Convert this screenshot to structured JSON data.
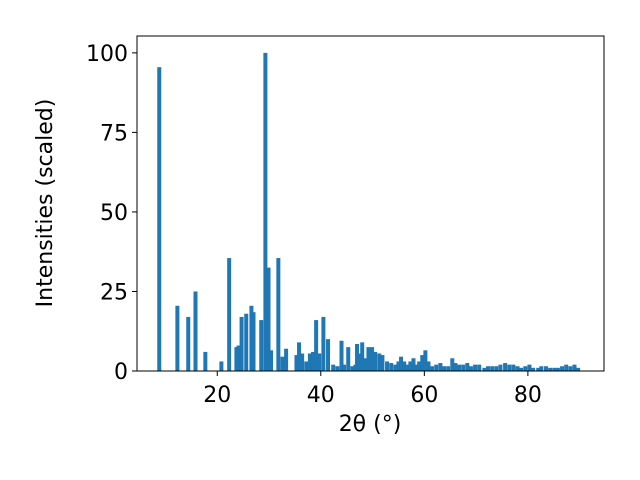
{
  "chart_data": {
    "type": "bar",
    "x_label": "2θ (°)",
    "y_label": "Intensities (scaled)",
    "color": "#1f77b4",
    "x": [
      8.8,
      12.3,
      14.4,
      15.8,
      17.7,
      20.8,
      22.3,
      23.7,
      24.1,
      24.7,
      25.6,
      26.6,
      27.0,
      28.5,
      29.3,
      29.9,
      30.4,
      31.8,
      32.6,
      33.3,
      35.3,
      35.8,
      36.4,
      37.2,
      37.9,
      38.5,
      39.1,
      39.7,
      40.5,
      41.4,
      42.4,
      43.2,
      44.0,
      44.5,
      45.3,
      46.1,
      46.7,
      47.0,
      47.4,
      48.0,
      48.6,
      49.2,
      49.9,
      50.5,
      51.3,
      51.9,
      52.8,
      53.6,
      54.4,
      55.0,
      55.5,
      56.1,
      56.7,
      57.3,
      57.9,
      58.4,
      59.0,
      59.6,
      60.2,
      60.8,
      61.5,
      62.3,
      63.1,
      63.8,
      64.6,
      65.4,
      66.0,
      66.7,
      67.5,
      68.3,
      69.0,
      69.8,
      70.6,
      71.6,
      72.3,
      73.1,
      73.9,
      74.7,
      75.6,
      76.4,
      77.2,
      78.0,
      78.7,
      79.5,
      80.3,
      81.0,
      82.0,
      82.6,
      83.5,
      84.3,
      85.1,
      85.8,
      86.6,
      87.4,
      88.2,
      89.0,
      89.7
    ],
    "values": [
      95.5,
      20.5,
      17,
      25,
      6,
      3,
      35.5,
      7.5,
      8,
      17,
      18,
      20.5,
      18.5,
      16,
      100,
      32.5,
      6.5,
      35.5,
      4.5,
      7,
      5,
      9,
      5.5,
      3,
      5.5,
      6,
      16,
      5.5,
      17,
      10,
      2,
      1.5,
      9.5,
      2,
      7.5,
      1.5,
      2,
      8.5,
      5.5,
      9,
      4,
      7.5,
      7.5,
      6,
      5.5,
      5,
      3,
      2.5,
      2,
      3,
      4.5,
      3,
      2,
      3,
      4,
      2,
      3,
      5,
      6.5,
      3,
      1.5,
      2,
      2.5,
      1.5,
      1.5,
      4,
      2.5,
      2,
      2,
      2.5,
      1.5,
      2,
      2,
      1,
      1.5,
      1.5,
      1.5,
      2,
      2.5,
      2,
      2,
      1.5,
      1,
      1.5,
      2,
      1,
      1,
      1.5,
      1.5,
      1,
      1,
      1,
      1.5,
      2,
      1.5,
      2,
      1
    ],
    "xlim": [
      4.5,
      94.7
    ],
    "ylim": [
      0,
      105.3
    ],
    "xticks": [
      20,
      40,
      60,
      80
    ],
    "yticks": [
      0,
      25,
      50,
      75,
      100
    ]
  }
}
